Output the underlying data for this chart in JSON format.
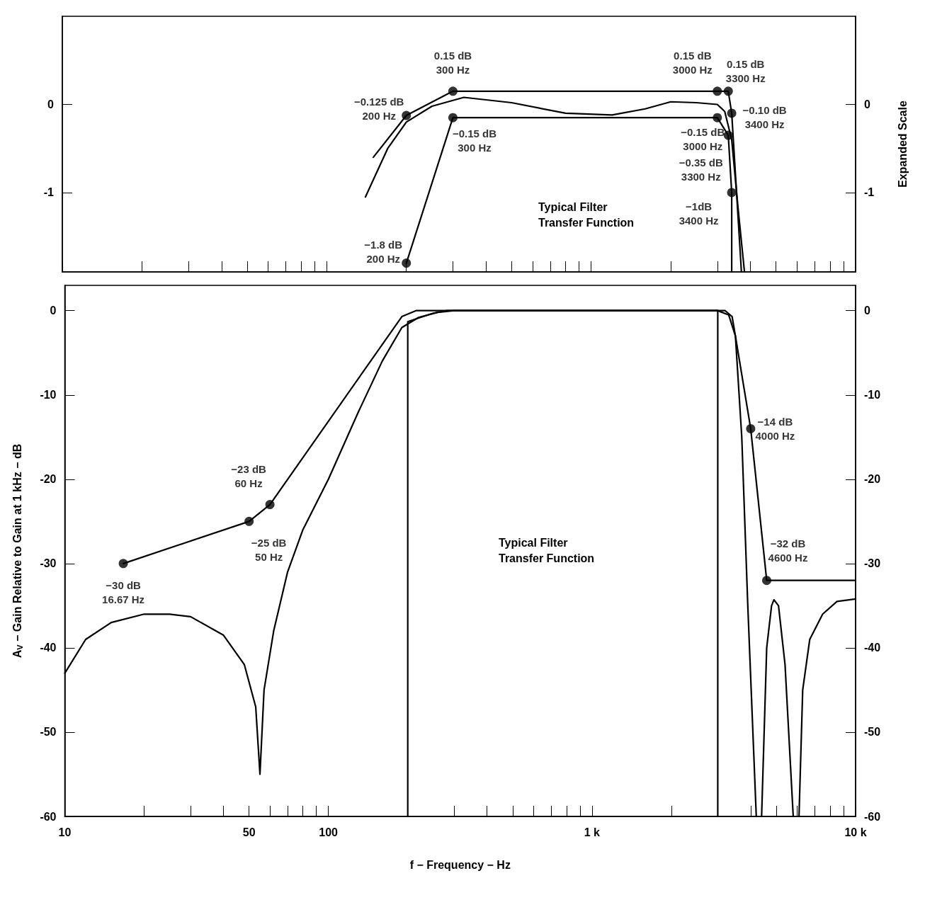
{
  "chart_data": [
    {
      "type": "line",
      "y2label": "Expanded Scale",
      "annotations": [
        "Typical Filter\nTransfer Function"
      ],
      "line_style": "solid",
      "tick_labels": "y",
      "log": "x",
      "xlim": [
        10,
        10000
      ],
      "xticks": [
        {
          "value": 10,
          "label": null
        },
        {
          "value": 20,
          "label": null
        },
        {
          "value": 30,
          "label": null
        },
        {
          "value": 40,
          "label": null
        },
        {
          "value": 50,
          "label": null
        },
        {
          "value": 60,
          "label": null
        },
        {
          "value": 70,
          "label": null
        },
        {
          "value": 80,
          "label": null
        },
        {
          "value": 90,
          "label": null
        },
        {
          "value": 100,
          "label": null
        },
        {
          "value": 200,
          "label": null
        },
        {
          "value": 300,
          "label": null
        },
        {
          "value": 400,
          "label": null
        },
        {
          "value": 500,
          "label": null
        },
        {
          "value": 600,
          "label": null
        },
        {
          "value": 700,
          "label": null
        },
        {
          "value": 800,
          "label": null
        },
        {
          "value": 900,
          "label": null
        },
        {
          "value": 1000,
          "label": null
        },
        {
          "value": 2000,
          "label": null
        },
        {
          "value": 3000,
          "label": null
        },
        {
          "value": 4000,
          "label": null
        },
        {
          "value": 5000,
          "label": null
        },
        {
          "value": 6000,
          "label": null
        },
        {
          "value": 7000,
          "label": null
        },
        {
          "value": 8000,
          "label": null
        },
        {
          "value": 9000,
          "label": null
        },
        {
          "value": 10000,
          "label": null
        }
      ],
      "ylim": [
        -1.9,
        1
      ],
      "yticks": [
        -1,
        0
      ],
      "y2lim": [
        -1.9,
        1
      ],
      "y2ticks": [
        -1,
        0
      ],
      "series": [
        {
          "color": "#000000",
          "x": [
            150,
            200,
            300,
            3000,
            3300,
            3400,
            3700
          ],
          "values": [
            -0.6,
            -0.125,
            0.15,
            0.15,
            0.15,
            -0.1,
            -1.9
          ]
        },
        {
          "color": "#000000",
          "x": [
            200,
            300,
            3000,
            3300,
            3400,
            3400
          ],
          "values": [
            -1.8,
            -0.15,
            -0.15,
            -0.35,
            -1,
            -1.9
          ]
        },
        {
          "color": "#000000",
          "x": [
            140,
            170,
            200,
            250,
            330,
            500,
            800,
            1200,
            1600,
            2000,
            2500,
            3000,
            3200,
            3400,
            3600,
            3800
          ],
          "values": [
            -1.05,
            -0.5,
            -0.2,
            -0.02,
            0.08,
            0.02,
            -0.1,
            -0.12,
            -0.05,
            0.03,
            0.02,
            0,
            -0.08,
            -0.4,
            -1.2,
            -1.9
          ]
        },
        {
          "type": "scatter",
          "marker": "circle",
          "color": "#000000",
          "x": [
            200,
            300,
            3000,
            3300,
            3400,
            200,
            300,
            3000,
            3300,
            3400
          ],
          "values": [
            -0.125,
            0.15,
            0.15,
            0.15,
            -0.1,
            -1.8,
            -0.15,
            -0.15,
            -0.35,
            -1
          ],
          "value_labels": [
            "−0.125 dB\n200 Hz",
            "0.15 dB\n300 Hz",
            "0.15 dB\n3000 Hz",
            "0.15 dB\n3300 Hz",
            "−0.10 dB\n3400 Hz",
            "−1.8 dB\n200 Hz",
            "−0.15 dB\n300 Hz",
            "−0.15 dB\n3000 Hz",
            "−0.35 dB\n3300 Hz",
            "−1dB\n3400 Hz"
          ]
        }
      ]
    },
    {
      "type": "line",
      "xlabel": "f − Frequency − Hz",
      "ylabel": "A$_{V}$ − Gain Relative to Gain at 1 kHz − dB",
      "annotations": [
        "Typical Filter\nTransfer Function"
      ],
      "line_style": "solid",
      "log": "x",
      "xlim": [
        10,
        10000
      ],
      "xticks": [
        10,
        {
          "value": 20,
          "label": null
        },
        {
          "value": 30,
          "label": null
        },
        {
          "value": 40,
          "label": null
        },
        50,
        {
          "value": 60,
          "label": null
        },
        {
          "value": 70,
          "label": null
        },
        {
          "value": 80,
          "label": null
        },
        {
          "value": 90,
          "label": null
        },
        100,
        {
          "value": 200,
          "label": null
        },
        {
          "value": 300,
          "label": null
        },
        {
          "value": 400,
          "label": null
        },
        {
          "value": 500,
          "label": null
        },
        {
          "value": 600,
          "label": null
        },
        {
          "value": 700,
          "label": null
        },
        {
          "value": 800,
          "label": null
        },
        {
          "value": 900,
          "label": null
        },
        {
          "value": 1000,
          "label": "1 k"
        },
        {
          "value": 2000,
          "label": null
        },
        {
          "value": 3000,
          "label": null
        },
        {
          "value": 4000,
          "label": null
        },
        {
          "value": 5000,
          "label": null
        },
        {
          "value": 6000,
          "label": null
        },
        {
          "value": 7000,
          "label": null
        },
        {
          "value": 8000,
          "label": null
        },
        {
          "value": 9000,
          "label": null
        },
        {
          "value": 10000,
          "label": "10 k"
        }
      ],
      "ylim": [
        -60,
        3
      ],
      "yticks": [
        -60,
        -50,
        -40,
        -30,
        -20,
        -10,
        0
      ],
      "y2lim": [
        -60,
        3
      ],
      "y2ticks": [
        -60,
        -50,
        -40,
        -30,
        -20,
        -10,
        0
      ],
      "series": [
        {
          "color": "#000000",
          "x": [
            16.67,
            50,
            60,
            190,
            215,
            3200,
            3400,
            3500,
            4000,
            4600,
            10000
          ],
          "values": [
            -30,
            -25,
            -23,
            -0.7,
            0,
            0,
            -0.7,
            -3,
            -14,
            -32,
            -32
          ]
        },
        {
          "color": "#000000",
          "x": [
            200,
            200,
            250,
            280,
            3000,
            3000
          ],
          "values": [
            -60,
            -1.3,
            -0.3,
            0,
            0,
            -60
          ]
        },
        {
          "color": "#000000",
          "x": [
            10,
            12,
            15,
            20,
            25,
            30,
            40,
            48,
            53,
            55,
            57,
            62,
            70,
            80,
            100,
            130,
            160,
            190,
            220,
            260,
            300,
            3000,
            3300,
            3500,
            3700,
            3900,
            4200,
            4300,
            4400,
            4600,
            4800,
            4900,
            5100,
            5400,
            5800,
            5900,
            6100,
            6300,
            6700,
            7500,
            8500,
            10000
          ],
          "values": [
            -43,
            -39,
            -37,
            -36,
            -36,
            -36.3,
            -38.5,
            -42,
            -47,
            -55,
            -45,
            -38,
            -31,
            -26,
            -20,
            -12,
            -6,
            -2,
            -0.8,
            -0.2,
            0,
            0,
            -0.5,
            -3,
            -15,
            -35,
            -60,
            null,
            -60,
            -40,
            -35,
            -34.3,
            -35,
            -42,
            -60,
            null,
            -60,
            -45,
            -39,
            -36,
            -34.5,
            -34.2
          ]
        },
        {
          "type": "scatter",
          "marker": "circle",
          "color": "#000000",
          "x": [
            16.67,
            50,
            60,
            4000,
            4600
          ],
          "values": [
            -30,
            -25,
            -23,
            -14,
            -32
          ],
          "value_labels": [
            "−30 dB\n16.67 Hz",
            "−25 dB\n50 Hz",
            "−23 dB\n60 Hz",
            "−14 dB\n4000 Hz",
            "−32 dB\n4600 Hz"
          ]
        }
      ]
    }
  ]
}
